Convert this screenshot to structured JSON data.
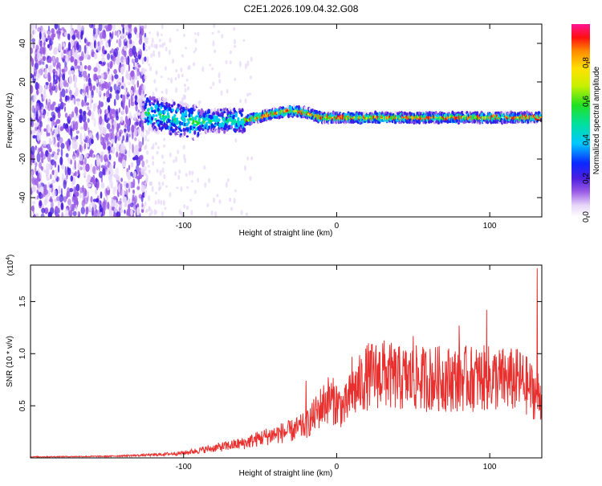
{
  "title": "C2E1.2026.109.04.32.G08",
  "chart_data": [
    {
      "type": "heatmap",
      "name": "spectrogram",
      "xlabel": "Height of straight line (km)",
      "ylabel": "Frequency (Hz)",
      "xlim": [
        -200,
        134
      ],
      "ylim": [
        -50,
        50
      ],
      "xticks": [
        -100,
        0,
        100
      ],
      "yticks": [
        -40,
        -20,
        0,
        20,
        40
      ],
      "colorbar": {
        "label": "Normalized spectral amplitude",
        "range": [
          0,
          1
        ],
        "ticks": [
          "0.0",
          "0.2",
          "0.4",
          "0.6",
          "0.8"
        ],
        "tick_values": [
          0.0,
          0.2,
          0.4,
          0.6,
          0.8
        ]
      },
      "dominant_ridge": {
        "description": "narrow high-amplitude band near 0-5 Hz",
        "points_km_hz": [
          [
            -125,
            4
          ],
          [
            -110,
            2
          ],
          [
            -100,
            0
          ],
          [
            -90,
            -1
          ],
          [
            -80,
            0
          ],
          [
            -60,
            0
          ],
          [
            -45,
            3
          ],
          [
            -30,
            5
          ],
          [
            -20,
            4
          ],
          [
            -10,
            1.5
          ],
          [
            0,
            1.5
          ],
          [
            20,
            1.5
          ],
          [
            50,
            1.5
          ],
          [
            100,
            1.5
          ],
          [
            134,
            1.5
          ]
        ]
      },
      "noise_region_km": [
        -200,
        -125
      ]
    },
    {
      "type": "line",
      "name": "snr",
      "xlabel": "Height of straight line (km)",
      "ylabel": "SNR (10 * v/v)",
      "y_multiplier": "(x10",
      "y_multiplier_exp": "4",
      "y_multiplier_close": ")",
      "xlim": [
        -200,
        134
      ],
      "ylim": [
        0,
        1.85
      ],
      "xticks": [
        -100,
        0,
        100
      ],
      "yticks": [
        0.5,
        1.0,
        1.5
      ],
      "ytick_labels": [
        "0.5",
        "1.0",
        "1.5"
      ],
      "series": [
        {
          "name": "SNR",
          "color": "#e8302e",
          "envelope_x_km": [
            -200,
            -150,
            -120,
            -100,
            -80,
            -60,
            -50,
            -40,
            -30,
            -20,
            -15,
            -10,
            -5,
            0,
            5,
            10,
            20,
            30,
            40,
            60,
            80,
            100,
            120,
            134
          ],
          "envelope_y": [
            0.01,
            0.015,
            0.03,
            0.05,
            0.1,
            0.15,
            0.2,
            0.24,
            0.27,
            0.33,
            0.42,
            0.52,
            0.6,
            0.55,
            0.5,
            0.65,
            0.82,
            0.85,
            0.8,
            0.8,
            0.8,
            0.8,
            0.78,
            0.6
          ],
          "peaks": [
            [
              -20,
              0.74
            ],
            [
              0,
              0.68
            ],
            [
              10,
              0.97
            ],
            [
              30,
              1.1
            ],
            [
              50,
              1.17
            ],
            [
              80,
              1.27
            ],
            [
              98,
              1.42
            ],
            [
              131,
              1.82
            ]
          ]
        }
      ]
    }
  ],
  "colors": {
    "axis": "#000000",
    "noise_purple": "#6a1fd8",
    "snr_red": "#e8302e"
  }
}
